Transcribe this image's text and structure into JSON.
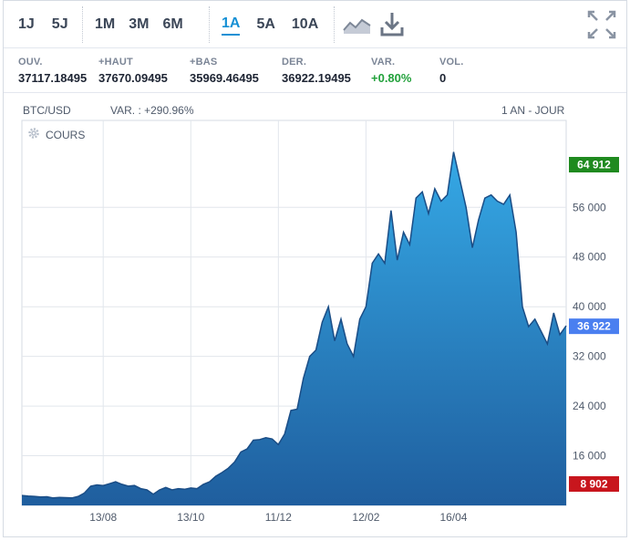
{
  "toolbar": {
    "periods_short": [
      "1J",
      "5J"
    ],
    "periods_mid": [
      "1M",
      "3M",
      "6M"
    ],
    "periods_long": [
      "1A",
      "5A",
      "10A"
    ],
    "active_period": "1A",
    "icons": [
      "line-chart-icon",
      "download-icon",
      "fullscreen-icon"
    ]
  },
  "stats": [
    {
      "label": "OUV.",
      "value": "37117.18495"
    },
    {
      "label": "+HAUT",
      "value": "37670.09495"
    },
    {
      "label": "+BAS",
      "value": "35969.46495"
    },
    {
      "label": "DER.",
      "value": "36922.19495"
    },
    {
      "label": "VAR.",
      "value": "+0.80%"
    },
    {
      "label": "VOL.",
      "value": "0"
    }
  ],
  "chart_header": {
    "symbol": "BTC/USD",
    "variation": "VAR. : +290.96%",
    "range": "1 AN - JOUR",
    "series_label": "COURS"
  },
  "colors": {
    "accent": "#1590d5",
    "positive": "#22a13b",
    "high_badge": "#1f8a1f",
    "low_badge": "#c8161d",
    "last_badge": "#4a7ff0",
    "line": "#1a4d86"
  },
  "chart_data": {
    "type": "area",
    "ylim": [
      8000,
      70000
    ],
    "y_ticks": [
      "16 000",
      "24 000",
      "32 000",
      "40 000",
      "48 000",
      "56 000"
    ],
    "y_tick_values": [
      16000,
      24000,
      32000,
      40000,
      48000,
      56000
    ],
    "x_ticks": [
      "13/08",
      "13/10",
      "11/12",
      "12/02",
      "16/04"
    ],
    "x_tick_index": [
      13,
      27,
      41,
      55,
      69
    ],
    "grid": true,
    "high_label": "64 912",
    "high_value": 64912,
    "low_label": "8 902",
    "low_value": 8902,
    "last_label": "36 922",
    "last_value": 36922,
    "values": [
      9600,
      9500,
      9450,
      9350,
      9400,
      9200,
      9300,
      9250,
      9200,
      9450,
      10000,
      11100,
      11300,
      11200,
      11500,
      11800,
      11400,
      11100,
      11200,
      10700,
      10500,
      9800,
      10500,
      10900,
      10500,
      10700,
      10600,
      10800,
      10700,
      11400,
      11800,
      12700,
      13300,
      14000,
      15000,
      16600,
      17100,
      18500,
      18600,
      18900,
      18700,
      17800,
      19500,
      23300,
      23500,
      28500,
      32000,
      33000,
      37500,
      40000,
      34500,
      38000,
      34000,
      32000,
      38000,
      40000,
      47000,
      48500,
      47000,
      55500,
      47500,
      52000,
      50000,
      57500,
      58500,
      55000,
      59000,
      57000,
      58000,
      64912,
      60500,
      56000,
      49500,
      54000,
      57500,
      58000,
      57000,
      56500,
      58000,
      52000,
      40000,
      36800,
      38000,
      36000,
      34000,
      39000,
      35500,
      36922
    ]
  }
}
